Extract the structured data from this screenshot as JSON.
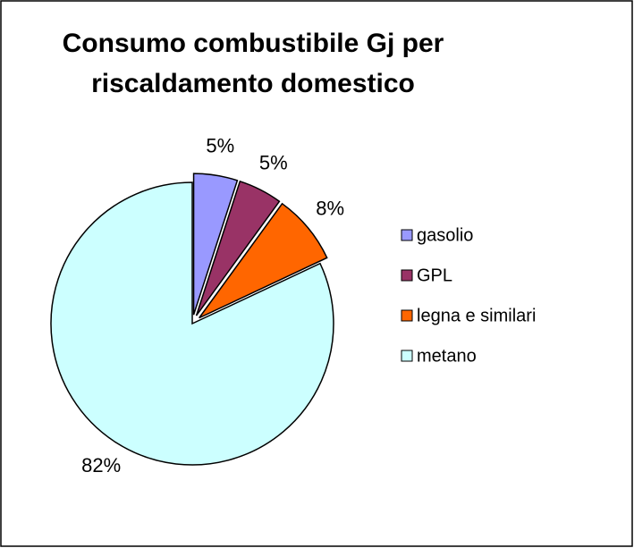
{
  "chart_data": {
    "type": "pie",
    "title": "Consumo combustibile Gj per riscaldamento domestico",
    "categories": [
      "gasolio",
      "GPL",
      "legna e similari",
      "metano"
    ],
    "values": [
      5,
      5,
      8,
      82
    ],
    "value_labels": [
      "5%",
      "5%",
      "8%",
      "82%"
    ],
    "colors": [
      "#9999ff",
      "#993366",
      "#ff6600",
      "#ccffff"
    ],
    "legend": "right"
  }
}
